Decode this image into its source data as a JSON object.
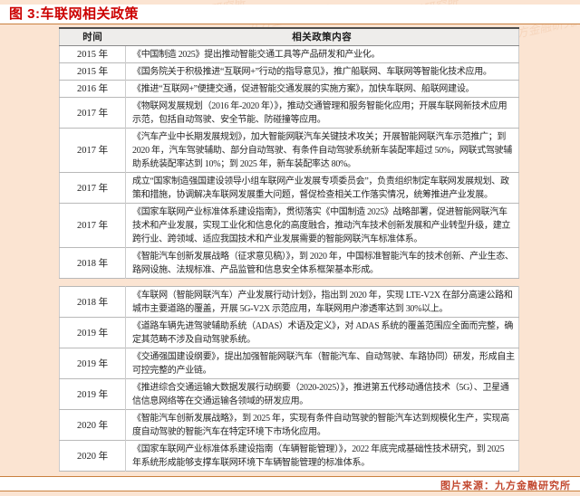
{
  "figure": {
    "title": "图 3:车联网相关政策"
  },
  "policy_table": {
    "columns": [
      "时间",
      "相关政策内容"
    ],
    "sections": [
      {
        "rows": [
          {
            "time": "2015 年",
            "content": "《中国制造 2025》提出推动智能交通工具等产品研发和产业化。"
          },
          {
            "time": "2015 年",
            "content": "《国务院关于积极推进“互联网+”行动的指导意见》，推广船联网、车联网等智能化技术应用。"
          },
          {
            "time": "2016 年",
            "content": "《推进“互联网+”便捷交通，促进智能交通发展的实施方案》，加快车联网、船联网建设。"
          },
          {
            "time": "2017 年",
            "content": "《物联网发展规划（2016 年-2020 年）》，推动交通管理和服务智能化应用；开展车联网新技术应用示范，包括自动驾驶、安全节能、防碰撞等应用。"
          },
          {
            "time": "2017 年",
            "content": "《汽车产业中长期发展规划》，加大智能网联汽车关键技术攻关；开展智能网联汽车示范推广；到 2020 年，汽车驾驶辅助、部分自动驾驶、有条件自动驾驶系统新车装配率超过 50%，网联式驾驶辅助系统装配率达到 10%；到 2025 年，新车装配率达 80%。"
          },
          {
            "time": "2017 年",
            "content": "成立“国家制造强国建设领导小组车联网产业发展专项委员会”，负责组织制定车联网发展规划、政策和措施，协调解决车联网发展重大问题，督促检查相关工作落实情况，统筹推进产业发展。"
          },
          {
            "time": "2017 年",
            "content": "《国家车联网产业标准体系建设指南》，贯彻落实《中国制造 2025》战略部署，促进智能网联汽车技术和产业发展，实现工业化和信息化的高度融合，推动汽车技术创新发展和产业转型升级，建立跨行业、跨领域、适应我国技术和产业发展需要的智能网联汽车标准体系。"
          },
          {
            "time": "2018 年",
            "content": "《智能汽车创新发展战略（征求意见稿）》，到 2020 年，中国标准智能汽车的技术创新、产业生态、路网设施、法规标准、产品监管和信息安全体系框架基本形成。"
          }
        ]
      },
      {
        "rows": [
          {
            "time": "2018 年",
            "content": "《车联网（智能网联汽车）产业发展行动计划》，指出到 2020 年，实现 LTE-V2X 在部分高速公路和城市主要道路的覆盖，开展 5G-V2X 示范应用，车联网用户渗透率达到 30%以上。"
          },
          {
            "time": "2019 年",
            "content": "《道路车辆先进驾驶辅助系统（ADAS）术语及定义》，对 ADAS 系统的覆盖范围应全面而完整，确定其范畴不涉及自动驾驶系统。"
          },
          {
            "time": "2019 年",
            "content": "《交通强国建设纲要》，提出加强智能网联汽车（智能汽车、自动驾驶、车路协同）研发，形成自主可控完整的产业链。"
          },
          {
            "time": "2019 年",
            "content": "《推进综合交通运输大数据发展行动纲要（2020-2025）》，推进第五代移动通信技术（5G）、卫星通信信息网络等在交通运输各领域的研发应用。"
          },
          {
            "time": "2020 年",
            "content": "《智能汽车创新发展战略》，到 2025 年，实现有条件自动驾驶的智能汽车达到规模化生产，实现高度自动驾驶的智能汽车在特定环境下市场化应用。"
          },
          {
            "time": "2020 年",
            "content": "《国家车联网产业标准体系建设指南（车辆智能管理）》，2022 年底完成基础性技术研究，到 2025 年系统形成能够支撑车联网环境下车辆智能管理的标准体系。"
          }
        ]
      }
    ]
  },
  "footer": {
    "source": "图片来源：九方金融研究所",
    "watermark": "九方金融研究所"
  },
  "colors": {
    "background": "#fbe4d2",
    "title_red": "#cc0000",
    "source_red": "#c2472e",
    "divider_orange": "#c9803f",
    "table_top_border": "#4d4d4d",
    "row_divider": "#b9b9b9"
  }
}
